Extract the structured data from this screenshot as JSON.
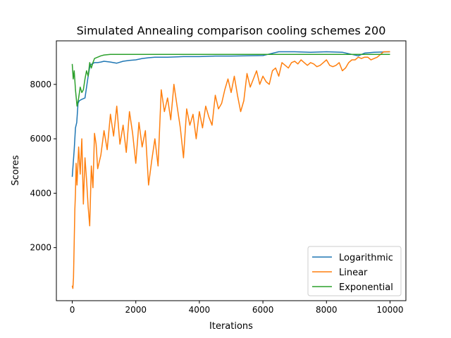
{
  "chart_data": {
    "type": "line",
    "title": "Simulated Annealing comparison cooling schemes 200",
    "xlabel": "Iterations",
    "ylabel": "Scores",
    "xlim": [
      -500,
      10500
    ],
    "ylim": [
      50,
      9600
    ],
    "xticks": [
      0,
      2000,
      4000,
      6000,
      8000,
      10000
    ],
    "yticks": [
      2000,
      4000,
      6000,
      8000
    ],
    "grid": false,
    "legend_position": "lower-right",
    "series": [
      {
        "name": "Logarithmic",
        "color": "#1f77b4",
        "x": [
          0,
          30,
          60,
          100,
          140,
          180,
          220,
          300,
          400,
          500,
          560,
          620,
          700,
          800,
          900,
          1000,
          1200,
          1400,
          1600,
          1800,
          2000,
          2200,
          2400,
          2600,
          2800,
          3000,
          3500,
          4000,
          4500,
          5000,
          5500,
          6000,
          6500,
          6600,
          7000,
          7500,
          8000,
          8500,
          9000,
          9200,
          9500,
          10000
        ],
        "y": [
          4600,
          5100,
          5600,
          6400,
          6600,
          7300,
          7400,
          7450,
          7500,
          8300,
          8700,
          8750,
          8800,
          8800,
          8820,
          8850,
          8820,
          8780,
          8850,
          8880,
          8900,
          8950,
          8980,
          9000,
          9000,
          9000,
          9020,
          9020,
          9040,
          9040,
          9050,
          9060,
          9200,
          9200,
          9200,
          9180,
          9200,
          9180,
          9050,
          9150,
          9180,
          9200
        ]
      },
      {
        "name": "Linear",
        "color": "#ff7f0e",
        "x": [
          0,
          20,
          40,
          60,
          80,
          100,
          120,
          150,
          200,
          250,
          300,
          350,
          400,
          450,
          500,
          550,
          600,
          650,
          700,
          750,
          800,
          900,
          1000,
          1100,
          1200,
          1300,
          1400,
          1500,
          1600,
          1700,
          1800,
          1900,
          2000,
          2100,
          2200,
          2300,
          2400,
          2500,
          2600,
          2700,
          2800,
          2900,
          3000,
          3100,
          3200,
          3300,
          3400,
          3500,
          3600,
          3700,
          3800,
          3900,
          4000,
          4100,
          4200,
          4300,
          4400,
          4500,
          4600,
          4700,
          4800,
          4900,
          5000,
          5100,
          5200,
          5300,
          5400,
          5500,
          5600,
          5700,
          5800,
          5900,
          6000,
          6100,
          6200,
          6300,
          6400,
          6500,
          6600,
          6700,
          6800,
          6900,
          7000,
          7100,
          7200,
          7300,
          7400,
          7500,
          7600,
          7700,
          7800,
          7900,
          8000,
          8100,
          8200,
          8300,
          8400,
          8500,
          8600,
          8700,
          8800,
          8900,
          9000,
          9100,
          9200,
          9300,
          9400,
          9500,
          9600,
          9700,
          9800,
          9900,
          10000
        ],
        "y": [
          600,
          500,
          900,
          2200,
          3400,
          4000,
          5100,
          4300,
          5700,
          4700,
          6000,
          3600,
          5300,
          4500,
          3500,
          2800,
          5000,
          4200,
          6200,
          5800,
          4900,
          5400,
          6300,
          5600,
          6900,
          6100,
          7200,
          5800,
          6500,
          5500,
          7000,
          6200,
          5100,
          6600,
          5700,
          6300,
          4300,
          5200,
          6000,
          5000,
          7800,
          7000,
          7500,
          6700,
          8000,
          7200,
          6400,
          5300,
          7100,
          6500,
          6900,
          6000,
          7000,
          6400,
          7200,
          6800,
          6500,
          7600,
          7100,
          7300,
          7800,
          8200,
          7700,
          8300,
          7600,
          7000,
          7400,
          8400,
          7900,
          8200,
          8500,
          8000,
          8300,
          8100,
          8000,
          8500,
          8600,
          8300,
          8800,
          8700,
          8600,
          8800,
          8850,
          8750,
          8900,
          8800,
          8700,
          8800,
          8750,
          8650,
          8700,
          8800,
          8900,
          8700,
          8650,
          8700,
          8800,
          8500,
          8600,
          8800,
          8900,
          8900,
          9000,
          8950,
          9000,
          9000,
          8900,
          8950,
          9000,
          9100,
          9200,
          9200,
          9200
        ]
      },
      {
        "name": "Exponential",
        "color": "#2ca02c",
        "x": [
          0,
          30,
          60,
          100,
          150,
          200,
          250,
          300,
          350,
          400,
          450,
          500,
          550,
          600,
          650,
          700,
          800,
          900,
          1000,
          1200,
          1500,
          2000,
          3000,
          4000,
          5000,
          6000,
          7000,
          8000,
          9000,
          10000
        ],
        "y": [
          8750,
          8200,
          8500,
          7800,
          7200,
          7500,
          7900,
          7700,
          7800,
          8200,
          8500,
          8300,
          8800,
          8600,
          8800,
          8950,
          9000,
          9050,
          9080,
          9100,
          9100,
          9100,
          9100,
          9100,
          9100,
          9100,
          9100,
          9100,
          9100,
          9100
        ]
      }
    ]
  }
}
